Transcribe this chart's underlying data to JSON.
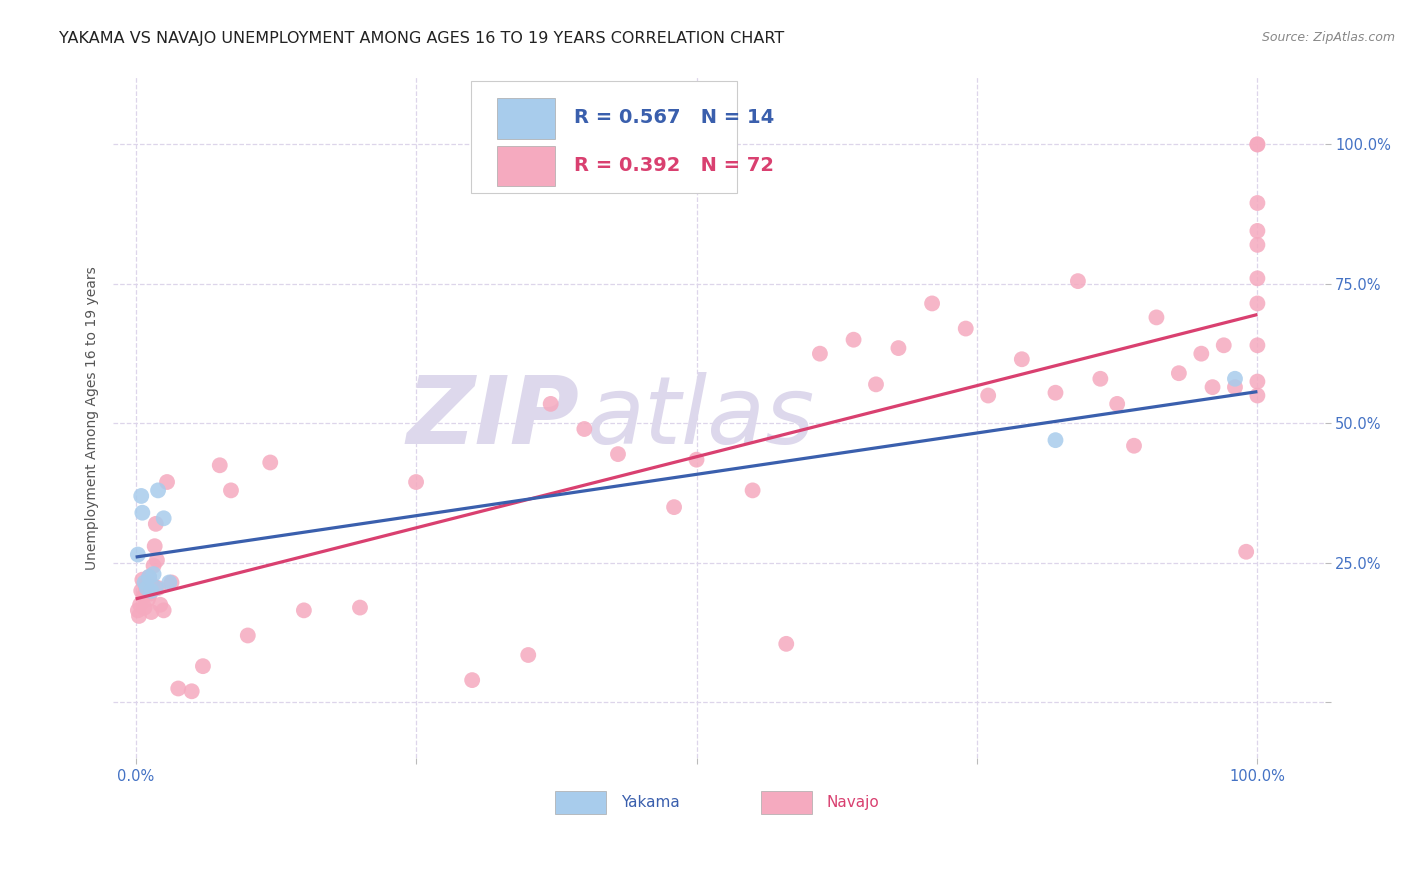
{
  "title": "YAKAMA VS NAVAJO UNEMPLOYMENT AMONG AGES 16 TO 19 YEARS CORRELATION CHART",
  "source": "Source: ZipAtlas.com",
  "ylabel": "Unemployment Among Ages 16 to 19 years",
  "yakama_R": 0.567,
  "yakama_N": 14,
  "navajo_R": 0.392,
  "navajo_N": 72,
  "yakama_color": "#A8CCEC",
  "navajo_color": "#F5AABF",
  "trendline_yakama_color": "#3A5FAD",
  "trendline_navajo_color": "#D94070",
  "watermark_top": "ZIP",
  "watermark_bot": "atlas",
  "background_color": "#FFFFFF",
  "grid_color": "#DDD5EA",
  "tick_color": "#4472C4",
  "title_color": "#222222",
  "title_fontsize": 11.5,
  "source_fontsize": 9,
  "watermark_color": "#DDD8EC",
  "marker_size": 130,
  "xlim": [
    -0.02,
    1.06
  ],
  "ylim": [
    -0.1,
    1.12
  ],
  "yakama_x": [
    0.002,
    0.005,
    0.006,
    0.008,
    0.01,
    0.012,
    0.014,
    0.016,
    0.018,
    0.02,
    0.025,
    0.03,
    0.82,
    0.98
  ],
  "yakama_y": [
    0.265,
    0.37,
    0.34,
    0.215,
    0.205,
    0.225,
    0.2,
    0.23,
    0.205,
    0.38,
    0.33,
    0.215,
    0.47,
    0.58
  ],
  "navajo_x": [
    0.002,
    0.003,
    0.004,
    0.005,
    0.006,
    0.007,
    0.008,
    0.009,
    0.01,
    0.011,
    0.012,
    0.013,
    0.014,
    0.015,
    0.016,
    0.017,
    0.018,
    0.019,
    0.02,
    0.022,
    0.025,
    0.028,
    0.032,
    0.038,
    0.05,
    0.06,
    0.075,
    0.085,
    0.1,
    0.12,
    0.15,
    0.2,
    0.25,
    0.3,
    0.35,
    0.37,
    0.4,
    0.43,
    0.48,
    0.5,
    0.55,
    0.58,
    0.61,
    0.64,
    0.66,
    0.68,
    0.71,
    0.74,
    0.76,
    0.79,
    0.82,
    0.84,
    0.86,
    0.875,
    0.89,
    0.91,
    0.93,
    0.95,
    0.96,
    0.97,
    0.98,
    0.99,
    1.0,
    1.0,
    1.0,
    1.0,
    1.0,
    1.0,
    1.0,
    1.0,
    1.0,
    1.0
  ],
  "navajo_y": [
    0.165,
    0.155,
    0.175,
    0.2,
    0.22,
    0.19,
    0.17,
    0.205,
    0.215,
    0.185,
    0.225,
    0.195,
    0.162,
    0.21,
    0.245,
    0.28,
    0.32,
    0.255,
    0.205,
    0.175,
    0.165,
    0.395,
    0.215,
    0.025,
    0.02,
    0.065,
    0.425,
    0.38,
    0.12,
    0.43,
    0.165,
    0.17,
    0.395,
    0.04,
    0.085,
    0.535,
    0.49,
    0.445,
    0.35,
    0.435,
    0.38,
    0.105,
    0.625,
    0.65,
    0.57,
    0.635,
    0.715,
    0.67,
    0.55,
    0.615,
    0.555,
    0.755,
    0.58,
    0.535,
    0.46,
    0.69,
    0.59,
    0.625,
    0.565,
    0.64,
    0.565,
    0.27,
    1.0,
    1.0,
    0.895,
    0.82,
    0.76,
    0.715,
    0.575,
    0.845,
    0.64,
    0.55
  ]
}
